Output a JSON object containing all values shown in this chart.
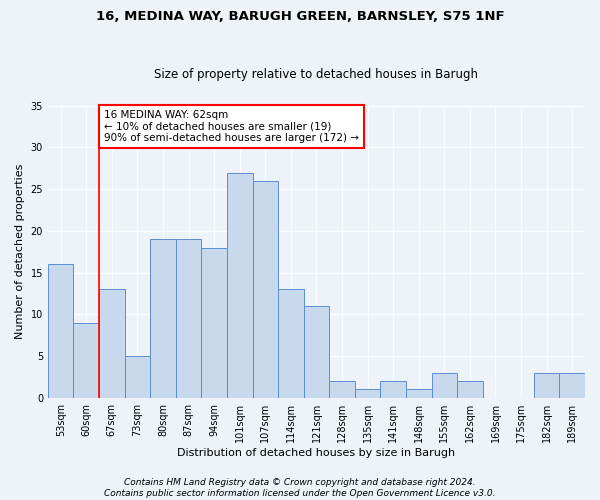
{
  "title1": "16, MEDINA WAY, BARUGH GREEN, BARNSLEY, S75 1NF",
  "title2": "Size of property relative to detached houses in Barugh",
  "xlabel": "Distribution of detached houses by size in Barugh",
  "ylabel": "Number of detached properties",
  "categories": [
    "53sqm",
    "60sqm",
    "67sqm",
    "73sqm",
    "80sqm",
    "87sqm",
    "94sqm",
    "101sqm",
    "107sqm",
    "114sqm",
    "121sqm",
    "128sqm",
    "135sqm",
    "141sqm",
    "148sqm",
    "155sqm",
    "162sqm",
    "169sqm",
    "175sqm",
    "182sqm",
    "189sqm"
  ],
  "values": [
    16,
    9,
    13,
    5,
    19,
    19,
    18,
    27,
    26,
    13,
    11,
    2,
    1,
    2,
    1,
    3,
    2,
    0,
    0,
    3,
    3
  ],
  "bar_color": "#c9d9ed",
  "bar_edge_color": "#5b8fd4",
  "vline_x": 1.5,
  "vline_color": "red",
  "annotation_text": "16 MEDINA WAY: 62sqm\n← 10% of detached houses are smaller (19)\n90% of semi-detached houses are larger (172) →",
  "annotation_box_color": "white",
  "annotation_box_edge_color": "red",
  "ylim": [
    0,
    35
  ],
  "yticks": [
    0,
    5,
    10,
    15,
    20,
    25,
    30,
    35
  ],
  "footnote1": "Contains HM Land Registry data © Crown copyright and database right 2024.",
  "footnote2": "Contains public sector information licensed under the Open Government Licence v3.0.",
  "background_color": "#eef2f9",
  "grid_color": "white",
  "title_fontsize": 9.5,
  "subtitle_fontsize": 8.5,
  "axis_label_fontsize": 8,
  "tick_fontsize": 7,
  "annotation_fontsize": 7.5,
  "footnote_fontsize": 6.5
}
